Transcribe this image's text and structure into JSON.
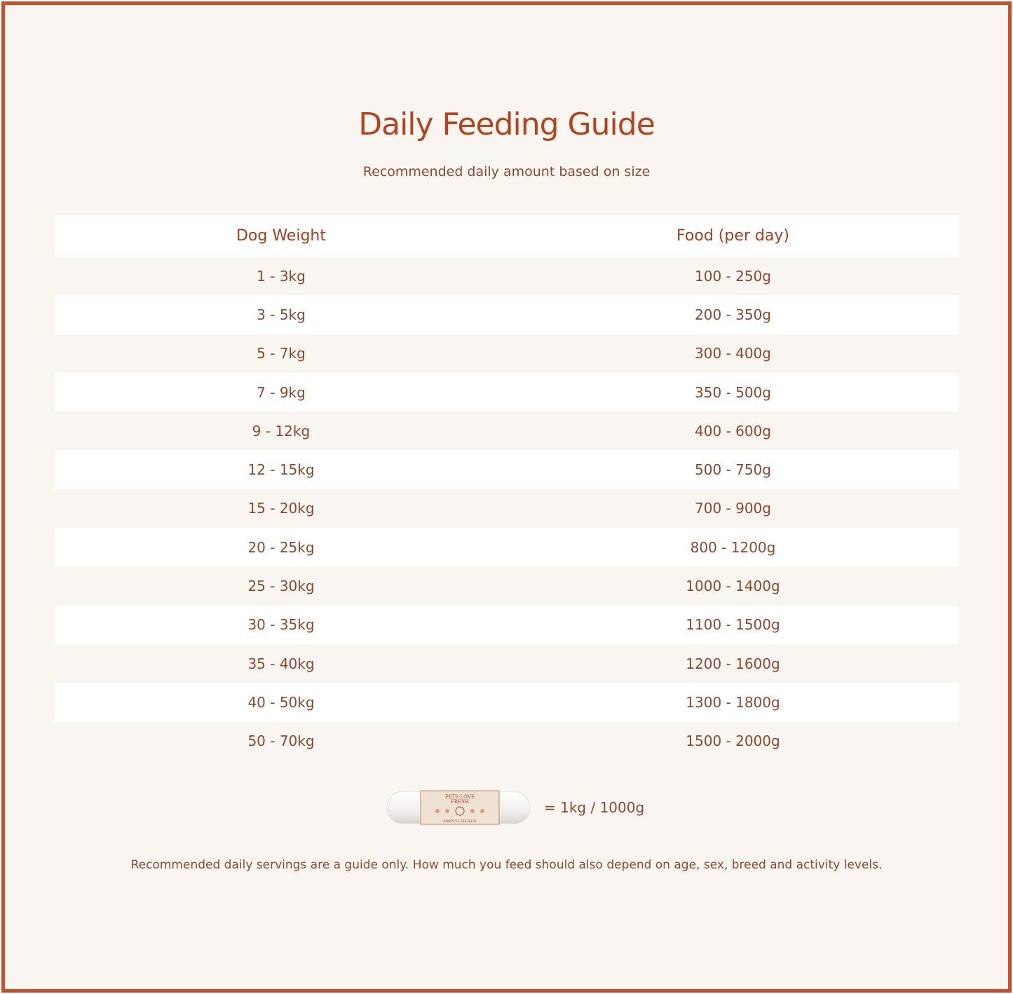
{
  "title": "Daily Feeding Guide",
  "subtitle": "Recommended daily amount based on size",
  "table": {
    "headers": [
      "Dog Weight",
      "Food (per day)"
    ],
    "rows": [
      [
        "1 - 3kg",
        "100 - 250g"
      ],
      [
        "3 - 5kg",
        "200 - 350g"
      ],
      [
        "5 - 7kg",
        "300 - 400g"
      ],
      [
        "7 - 9kg",
        "350 - 500g"
      ],
      [
        "9 - 12kg",
        "400 - 600g"
      ],
      [
        "12 - 15kg",
        "500 - 750g"
      ],
      [
        "15 - 20kg",
        "700 - 900g"
      ],
      [
        "20 - 25kg",
        "800 - 1200g"
      ],
      [
        "25 - 30kg",
        "1000 - 1400g"
      ],
      [
        "30 - 35kg",
        "1100 - 1500g"
      ],
      [
        "35 - 40kg",
        "1200 - 1600g"
      ],
      [
        "40 - 50kg",
        "1300 - 1800g"
      ],
      [
        "50 - 70kg",
        "1500 - 2000g"
      ]
    ]
  },
  "legend": {
    "product_logo": "PETS LOVE FRESH",
    "product_name": "SIMPLY CHICKEN",
    "equals": "= 1kg / 1000g"
  },
  "note": "Recommended daily servings are a guide only. How much you feed should also depend on age, sex, breed and activity levels.",
  "colors": {
    "border": "#c94f2a",
    "title": "#b2451f",
    "text": "#8a4a30",
    "background": "#f9f6f1"
  }
}
